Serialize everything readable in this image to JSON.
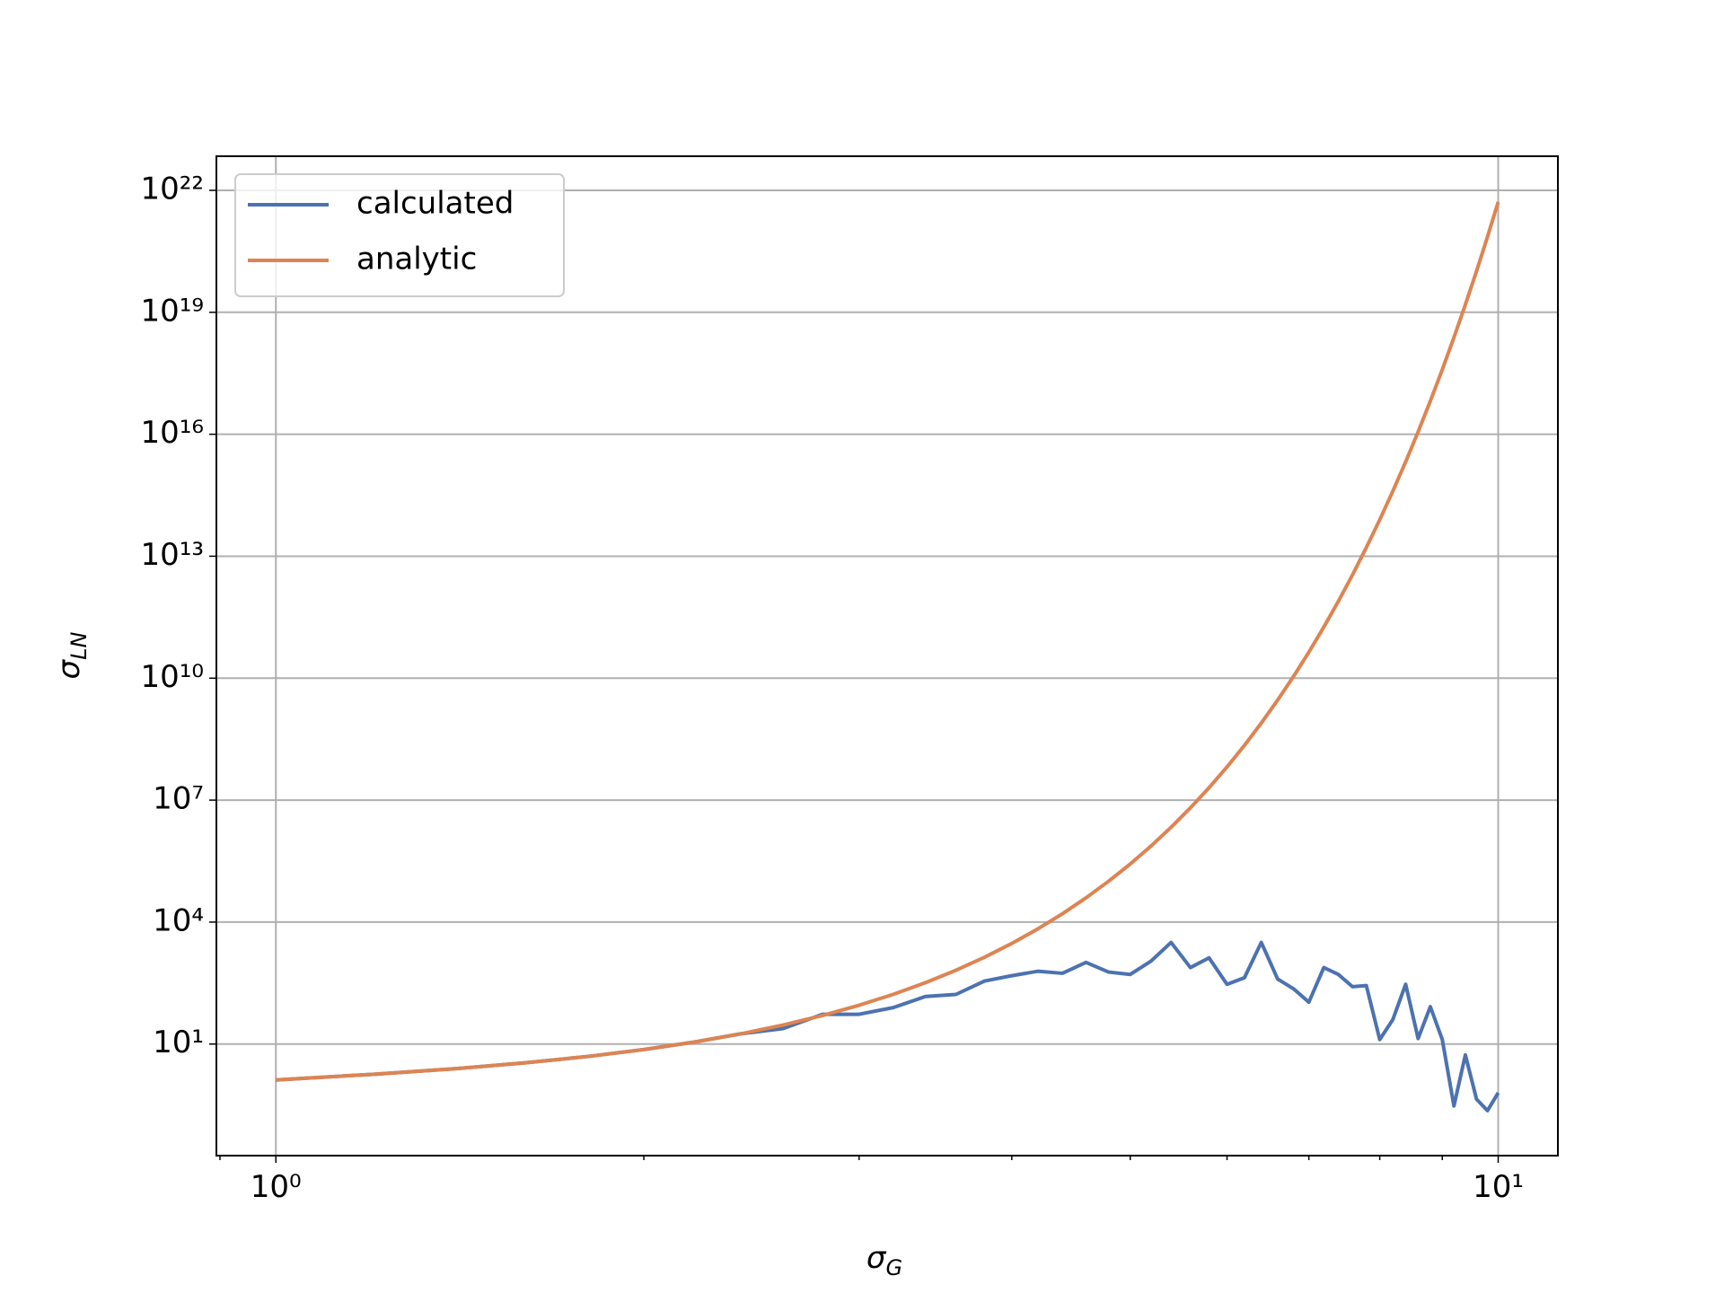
{
  "chart_data": {
    "type": "line",
    "xlabel": {
      "symbol": "σ",
      "subscript": "G"
    },
    "ylabel": {
      "symbol": "σ",
      "subscript": "LN"
    },
    "xscale": "log",
    "yscale": "log",
    "grid": true,
    "legend": "upper left",
    "xlim": [
      0.894,
      11.19
    ],
    "ylim": [
      0.018,
      6.9e+22
    ],
    "xticks": [
      {
        "value": 1,
        "label": "10⁰"
      },
      {
        "value": 10,
        "label": "10¹"
      }
    ],
    "xminorticks": [
      0.9,
      2,
      3,
      4,
      5,
      6,
      7,
      8,
      9
    ],
    "yticks": [
      {
        "value": 10,
        "label": "10¹"
      },
      {
        "value": 10000.0,
        "label": "10⁴"
      },
      {
        "value": 10000000.0,
        "label": "10⁷"
      },
      {
        "value": 10000000000.0,
        "label": "10¹⁰"
      },
      {
        "value": 10000000000000.0,
        "label": "10¹³"
      },
      {
        "value": 1e+16,
        "label": "10¹⁶"
      },
      {
        "value": 1e+19,
        "label": "10¹⁹"
      },
      {
        "value": 1e+22,
        "label": "10²²"
      }
    ],
    "x": [
      1.0,
      1.2,
      1.4,
      1.6,
      1.8,
      2.0,
      2.2,
      2.4,
      2.6,
      2.8,
      3.0,
      3.2,
      3.4,
      3.6,
      3.8,
      4.0,
      4.2,
      4.4,
      4.6,
      4.8,
      5.0,
      5.2,
      5.4,
      5.6,
      5.8,
      6.0,
      6.2,
      6.4,
      6.6,
      6.8,
      7.0,
      7.2,
      7.4,
      7.6,
      7.8,
      8.0,
      8.2,
      8.4,
      8.6,
      8.8,
      9.0,
      9.2,
      9.4,
      9.6,
      9.8,
      10.0
    ],
    "series": [
      {
        "name": "calculated",
        "color": "#4c72b0",
        "values": [
          1.31,
          1.8,
          2.47,
          3.46,
          4.95,
          7.32,
          11.2,
          17.8,
          24,
          54,
          54,
          79,
          148,
          166,
          355,
          480,
          617,
          550,
          1020,
          590,
          515,
          1100,
          3160,
          760,
          1320,
          295,
          427,
          3160,
          398,
          229,
          107,
          760,
          515,
          257,
          275,
          12.9,
          40,
          295,
          13.7,
          83,
          12.9,
          0.3,
          5.4,
          0.44,
          0.23,
          0.63
        ]
      },
      {
        "name": "analytic",
        "color": "#dd8452",
        "values": [
          1.31,
          1.8,
          2.47,
          3.46,
          4.95,
          7.32,
          11.2,
          17.8,
          29.4,
          50.4,
          90.0,
          167,
          324,
          652,
          1367,
          2981,
          6770,
          16000,
          39400,
          101000.0,
          268000.0,
          744000.0,
          2150000.0,
          6460000.0,
          20200000.0,
          65700000.0,
          222000000.0,
          784000000.0,
          2880000000.0,
          11000000000.0,
          43700000000.0,
          181000000000.0,
          778000000000.0,
          3490000000000.0,
          16300000000000.0,
          79000000000000.0,
          399000000000000.0,
          2100000000000000.0,
          1.15e+16,
          6.55e+16,
          3.88e+17,
          2.4e+18,
          1.54e+19,
          1.03e+20,
          7.16e+20,
          5.19e+21
        ]
      }
    ]
  }
}
